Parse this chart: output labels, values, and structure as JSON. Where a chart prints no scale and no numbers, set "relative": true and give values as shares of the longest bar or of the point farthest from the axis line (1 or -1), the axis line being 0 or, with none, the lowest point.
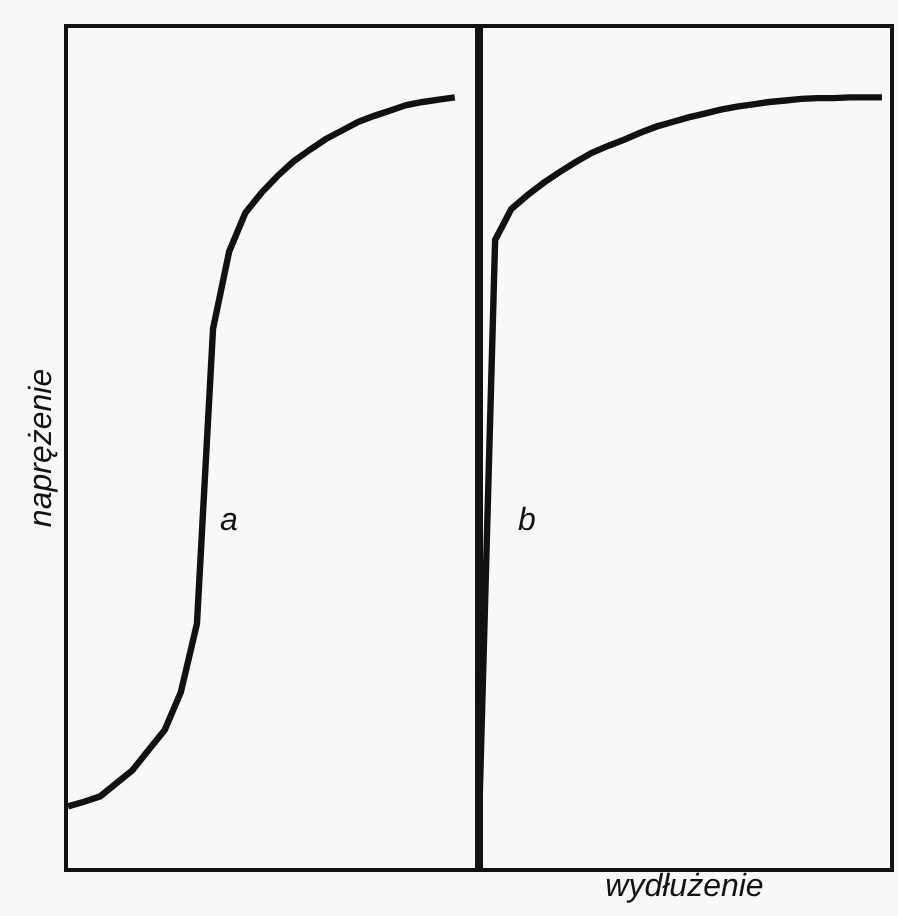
{
  "chart_data": [
    {
      "type": "line",
      "relative": true,
      "ylabel": "naprężenie",
      "tick_labels": false,
      "marker": "none",
      "line_style": "solid",
      "categories": [
        null,
        null,
        null,
        null,
        null,
        null,
        null,
        null,
        null,
        null,
        null,
        null,
        null,
        null,
        null,
        null,
        null,
        null,
        null,
        null,
        null,
        null,
        null,
        null,
        null,
        null
      ],
      "series": [
        {
          "color": "#111111",
          "values": [
            0.08,
            0.086,
            0.093,
            0.11,
            0.127,
            0.153,
            0.179,
            0.228,
            0.317,
            0.7,
            0.8,
            0.85,
            0.876,
            0.898,
            0.917,
            0.932,
            0.946,
            0.957,
            0.968,
            0.976,
            0.983,
            0.99,
            0.994,
            0.997,
            1,
            null
          ]
        }
      ],
      "annotations": [
        "a"
      ]
    },
    {
      "type": "line",
      "relative": true,
      "xlabel": "wydłużenie",
      "tick_labels": false,
      "marker": "none",
      "line_style": "solid",
      "categories": [
        null,
        null,
        null,
        null,
        null,
        null,
        null,
        null,
        null,
        null,
        null,
        null,
        null,
        null,
        null,
        null,
        null,
        null,
        null,
        null,
        null,
        null,
        null,
        null,
        null,
        null
      ],
      "series": [
        {
          "color": "#111111",
          "values": [
            0.059,
            0.815,
            0.855,
            0.873,
            0.889,
            0.903,
            0.916,
            0.928,
            0.937,
            0.945,
            0.954,
            0.962,
            0.968,
            0.974,
            0.979,
            0.984,
            0.988,
            0.991,
            0.994,
            0.996,
            0.998,
            0.999,
            0.999,
            1,
            1,
            1
          ]
        }
      ],
      "annotations": [
        "b"
      ]
    }
  ]
}
